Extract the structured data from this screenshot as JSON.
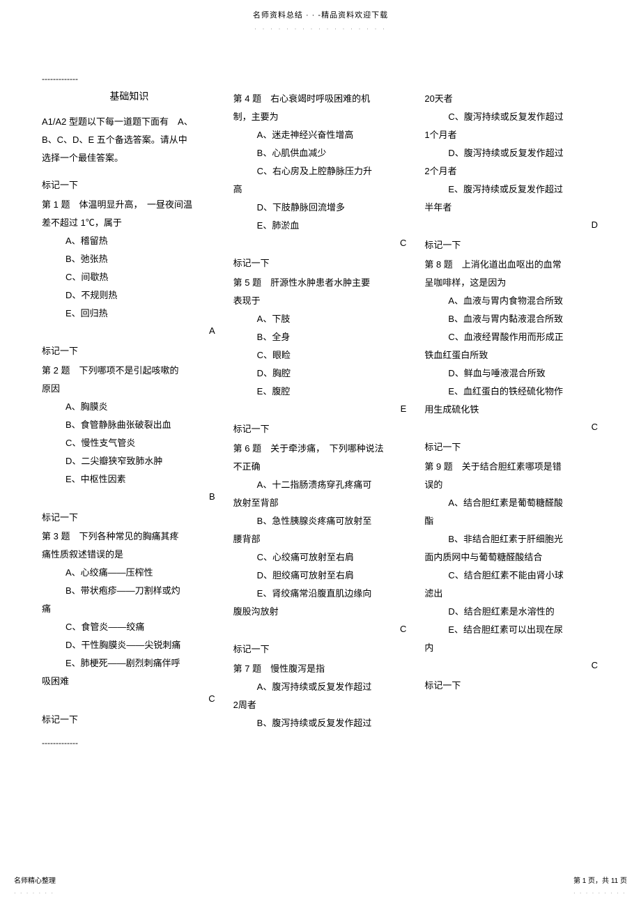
{
  "header": {
    "text": "名师资料总结 · · -精品资料欢迎下载",
    "dots": "· · · · · · · · · · · · · · · · ·"
  },
  "dashes": "-------------",
  "sectionTitle": "基础知识",
  "intro": {
    "line1": "A1/A2 型题以下每一道题下面有　A、",
    "line2": "B、C、D、E 五个备选答案。请从中",
    "line3": "选择一个最佳答案。"
  },
  "markText": "标记一下",
  "questions": [
    {
      "title": "第 1 题　体温明显升高，　一昼夜间温",
      "title2": "差不超过 1℃，属于",
      "options": [
        "A、稽留热",
        "B、弛张热",
        "C、间歇热",
        "D、不规则热",
        "E、回归热"
      ],
      "answer": "A"
    },
    {
      "title": "第 2 题　下列哪项不是引起咳嗽的",
      "title2": "原因",
      "options": [
        "A、胸膜炎",
        "B、食管静脉曲张破裂出血",
        "C、慢性支气管炎",
        "D、二尖瓣狭窄致肺水肿",
        "E、中枢性因素"
      ],
      "answer": "B"
    },
    {
      "title": "第 3 题　下列各种常见的胸痛其疼",
      "title2": "痛性质叙述错误的是",
      "options": [
        "A、心绞痛——压榨性",
        "B、带状疱疹——刀割样或灼",
        "C、食管炎——绞痛",
        "D、干性胸膜炎——尖锐刺痛",
        "E、肺梗死——剧烈刺痛伴呼"
      ],
      "optCont": {
        "b": "痛",
        "e": "吸困难"
      },
      "answer": "C"
    },
    {
      "title": "第 4 题　右心衰竭时呼吸困难的机",
      "title2": "制，主要为",
      "options": [
        "A、迷走神经兴奋性增高",
        "B、心肌供血减少",
        "C、右心房及上腔静脉压力升",
        "D、下肢静脉回流增多",
        "E、肺淤血"
      ],
      "optCont": {
        "c": "高"
      },
      "answer": "C"
    },
    {
      "title": "第 5 题　肝源性水肿患者水肿主要",
      "title2": "表现于",
      "options": [
        "A、下肢",
        "B、全身",
        "C、眼睑",
        "D、胸腔",
        "E、腹腔"
      ],
      "answer": "E"
    },
    {
      "title": "第 6 题　关于牵涉痛，　下列哪种说法",
      "title2": "不正确",
      "options": [
        "A、十二指肠溃疡穿孔疼痛可",
        "B、急性胰腺炎疼痛可放射至",
        "C、心绞痛可放射至右肩",
        "D、胆绞痛可放射至右肩",
        "E、肾绞痛常沿腹直肌边缘向"
      ],
      "optCont": {
        "a": "放射至背部",
        "b": "腰背部",
        "e": "腹股沟放射"
      },
      "answer": "C"
    },
    {
      "title": "第 7 题　慢性腹泻是指",
      "options": [
        "A、腹泻持续或反复发作超过",
        "B、腹泻持续或反复发作超过",
        "C、腹泻持续或反复发作超过",
        "D、腹泻持续或反复发作超过",
        "E、腹泻持续或反复发作超过"
      ],
      "optCont": {
        "a": "2周者",
        "b": "20天者",
        "c": "1个月者",
        "d": "2个月者",
        "e": "半年者"
      },
      "answer": "D"
    },
    {
      "title": "第 8 题　上消化道出血呕出的血常",
      "title2": "呈咖啡样，这是因为",
      "options": [
        "A、血液与胃内食物混合所致",
        "B、血液与胃内黏液混合所致",
        "C、血液经胃酸作用而形成正",
        "D、鲜血与唾液混合所致",
        "E、血红蛋白的铁经硫化物作"
      ],
      "optCont": {
        "c": "铁血红蛋白所致",
        "e": "用生成硫化铁"
      },
      "answer": "C"
    },
    {
      "title": "第 9 题　关于结合胆红素哪项是错",
      "title2": "误的",
      "options": [
        "A、结合胆红素是葡萄糖醛酸",
        "B、非结合胆红素于肝细胞光",
        "C、结合胆红素不能由肾小球",
        "D、结合胆红素是水溶性的",
        "E、结合胆红素可以出现在尿"
      ],
      "optCont": {
        "a": "酯",
        "b": "面内质网中与葡萄糖醛酸结合",
        "c": "滤出",
        "e": "内"
      },
      "answer": "C"
    }
  ],
  "footer": {
    "left": "名师精心整理",
    "leftDots": "· · · · · · ·",
    "right": "第 1 页，共 11 页",
    "rightDots": "· · · · · · · · ·"
  }
}
